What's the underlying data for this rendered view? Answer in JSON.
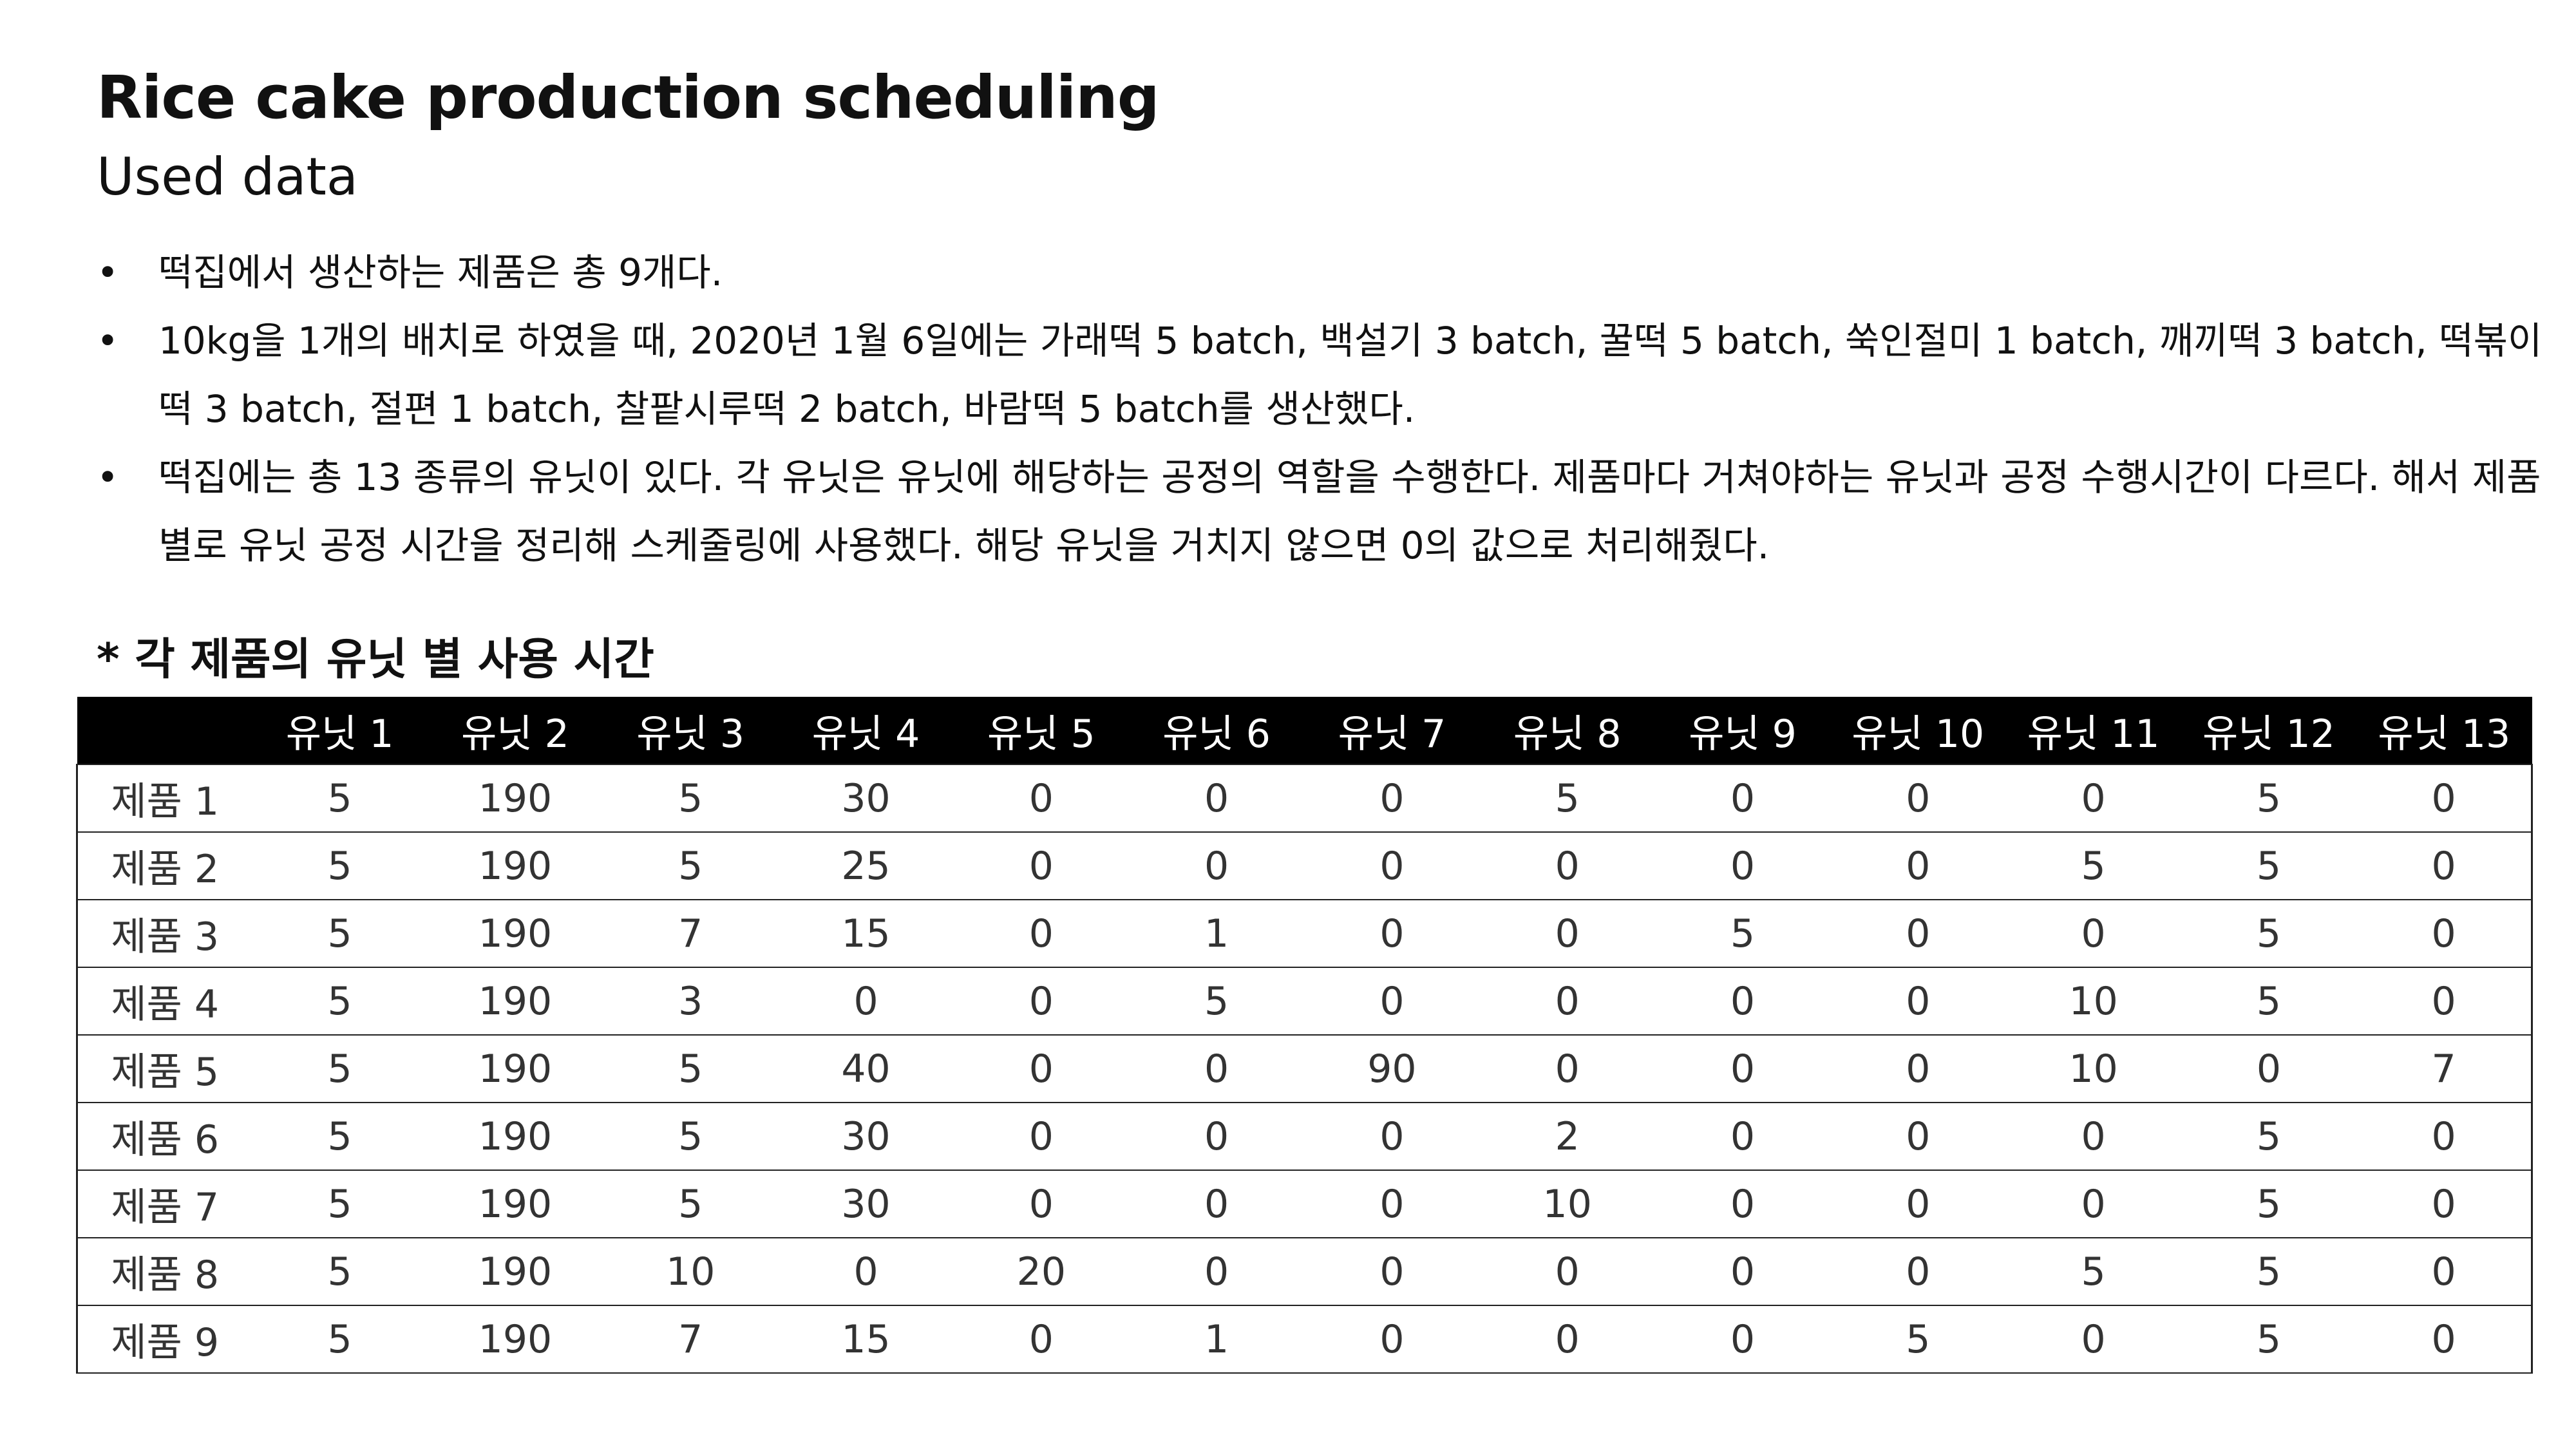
{
  "document": {
    "title": "Rice cake production scheduling",
    "subtitle": "Used data",
    "bullets": [
      "떡집에서 생산하는 제품은 총 9개다.",
      "10kg을 1개의 배치로 하였을 때, 2020년 1월 6일에는 가래떡 5 batch, 백설기 3 batch, 꿀떡 5 batch, 쑥인절미 1 batch, 깨끼떡 3 batch, 떡볶이 떡 3 batch, 절편 1 batch, 찰팥시루떡 2 batch, 바람떡 5 batch를 생산했다.",
      "떡집에는 총 13 종류의 유닛이 있다. 각 유닛은 유닛에 해당하는 공정의 역할을 수행한다. 제품마다 거쳐야하는 유닛과 공정 수행시간이 다르다. 해서 제품별로 유닛 공정 시간을 정리해 스케줄링에 사용했다. 해당 유닛을 거치지 않으면 0의 값으로 처리해줬다."
    ],
    "bullet_symbol": "•",
    "section_heading": "* 각 제품의 유닛 별 사용 시간"
  },
  "table": {
    "corner_header": "",
    "columns": [
      "유닛 1",
      "유닛 2",
      "유닛 3",
      "유닛 4",
      "유닛 5",
      "유닛 6",
      "유닛 7",
      "유닛 8",
      "유닛 9",
      "유닛 10",
      "유닛 11",
      "유닛 12",
      "유닛 13"
    ],
    "rows": [
      {
        "label": "제품 1",
        "values": [
          "5",
          "190",
          "5",
          "30",
          "0",
          "0",
          "0",
          "5",
          "0",
          "0",
          "0",
          "5",
          "0"
        ]
      },
      {
        "label": "제품 2",
        "values": [
          "5",
          "190",
          "5",
          "25",
          "0",
          "0",
          "0",
          "0",
          "0",
          "0",
          "5",
          "5",
          "0"
        ]
      },
      {
        "label": "제품 3",
        "values": [
          "5",
          "190",
          "7",
          "15",
          "0",
          "1",
          "0",
          "0",
          "5",
          "0",
          "0",
          "5",
          "0"
        ]
      },
      {
        "label": "제품 4",
        "values": [
          "5",
          "190",
          "3",
          "0",
          "0",
          "5",
          "0",
          "0",
          "0",
          "0",
          "10",
          "5",
          "0"
        ]
      },
      {
        "label": "제품 5",
        "values": [
          "5",
          "190",
          "5",
          "40",
          "0",
          "0",
          "90",
          "0",
          "0",
          "0",
          "10",
          "0",
          "7"
        ]
      },
      {
        "label": "제품 6",
        "values": [
          "5",
          "190",
          "5",
          "30",
          "0",
          "0",
          "0",
          "2",
          "0",
          "0",
          "0",
          "5",
          "0"
        ]
      },
      {
        "label": "제품 7",
        "values": [
          "5",
          "190",
          "5",
          "30",
          "0",
          "0",
          "0",
          "10",
          "0",
          "0",
          "0",
          "5",
          "0"
        ]
      },
      {
        "label": "제품 8",
        "values": [
          "5",
          "190",
          "10",
          "0",
          "20",
          "0",
          "0",
          "0",
          "0",
          "0",
          "5",
          "5",
          "0"
        ]
      },
      {
        "label": "제품 9",
        "values": [
          "5",
          "190",
          "7",
          "15",
          "0",
          "1",
          "0",
          "0",
          "0",
          "5",
          "0",
          "5",
          "0"
        ]
      }
    ]
  },
  "colors": {
    "header_background": "#000000",
    "header_text": "#ffffff",
    "body_text": "#111111"
  }
}
